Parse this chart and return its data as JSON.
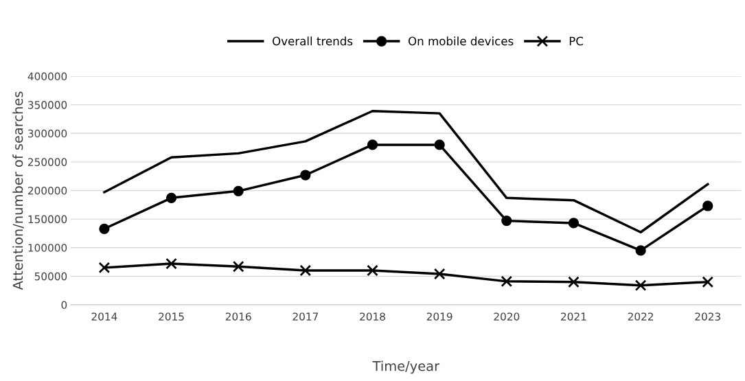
{
  "chart_data": {
    "type": "line",
    "xlabel": "Time/year",
    "ylabel": "Attention/number of searches",
    "categories": [
      "2014",
      "2015",
      "2016",
      "2017",
      "2018",
      "2019",
      "2020",
      "2021",
      "2022",
      "2023"
    ],
    "series": [
      {
        "name": "Overall trends",
        "color": "#000000",
        "marker": "none",
        "values": [
          197000,
          258000,
          265000,
          286000,
          339000,
          335000,
          187000,
          183000,
          127000,
          211000
        ]
      },
      {
        "name": "On mobile devices",
        "color": "#000000",
        "marker": "circle",
        "values": [
          133000,
          187000,
          199000,
          227000,
          280000,
          280000,
          147000,
          143000,
          95000,
          173000
        ]
      },
      {
        "name": "PC",
        "color": "#000000",
        "marker": "cross",
        "values": [
          65000,
          72000,
          67000,
          60000,
          60000,
          54000,
          41000,
          40000,
          34000,
          40000
        ]
      }
    ],
    "ylim": [
      0,
      400000
    ],
    "yticks": [
      0,
      50000,
      100000,
      150000,
      200000,
      250000,
      300000,
      350000,
      400000
    ],
    "grid": "y",
    "legend": "top",
    "line_style": "solid"
  }
}
